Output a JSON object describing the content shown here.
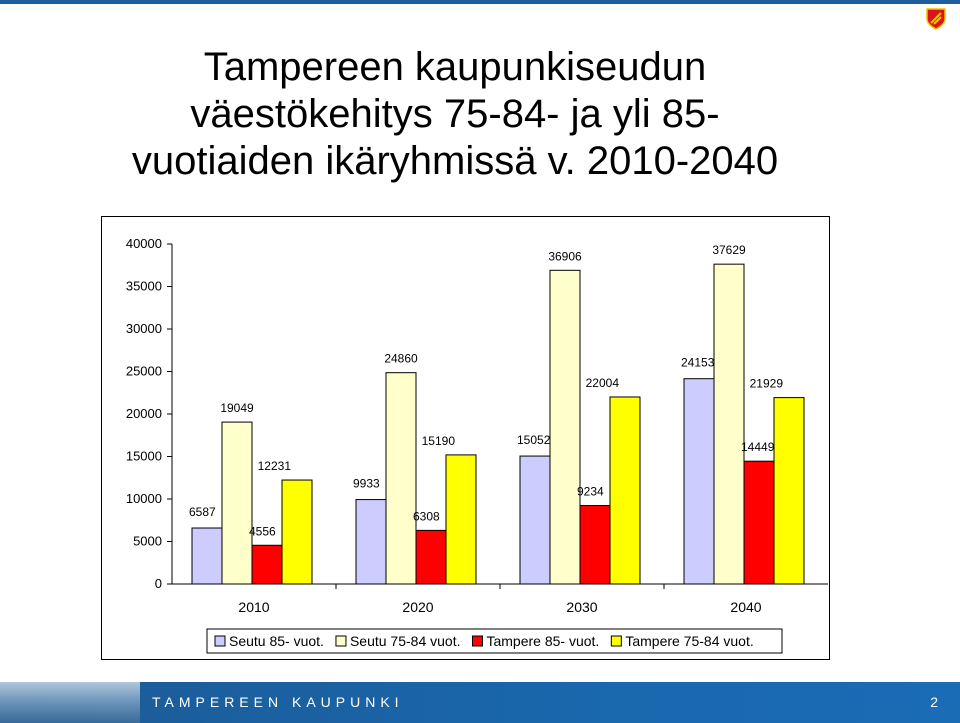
{
  "slide": {
    "title": "Tampereen kaupunkiseudun\nväestökehitys 75-84- ja yli 85-\nvuotiaiden ikäryhmissä v. 2010-2040",
    "footer_org": "TAMPEREEN KAUPUNKI",
    "page_number": "2"
  },
  "chart_data": {
    "type": "bar",
    "categories": [
      "2010",
      "2020",
      "2030",
      "2040"
    ],
    "series": [
      {
        "name": "Seutu 85- vuot.",
        "color": "#ccccff",
        "values": [
          6587,
          9933,
          15052,
          24153
        ]
      },
      {
        "name": "Seutu 75-84 vuot.",
        "color": "#ffffcc",
        "values": [
          19049,
          24860,
          36906,
          37629
        ]
      },
      {
        "name": "Tampere 85- vuot.",
        "color": "#ff0000",
        "values": [
          4556,
          6308,
          9234,
          14449
        ]
      },
      {
        "name": "Tampere 75-84 vuot.",
        "color": "#ffff00",
        "values": [
          12231,
          15190,
          22004,
          21929
        ]
      }
    ],
    "ylim": [
      0,
      40000
    ],
    "yticks": [
      0,
      5000,
      10000,
      15000,
      20000,
      25000,
      30000,
      35000,
      40000
    ],
    "grid": false,
    "legend": "bottom"
  }
}
